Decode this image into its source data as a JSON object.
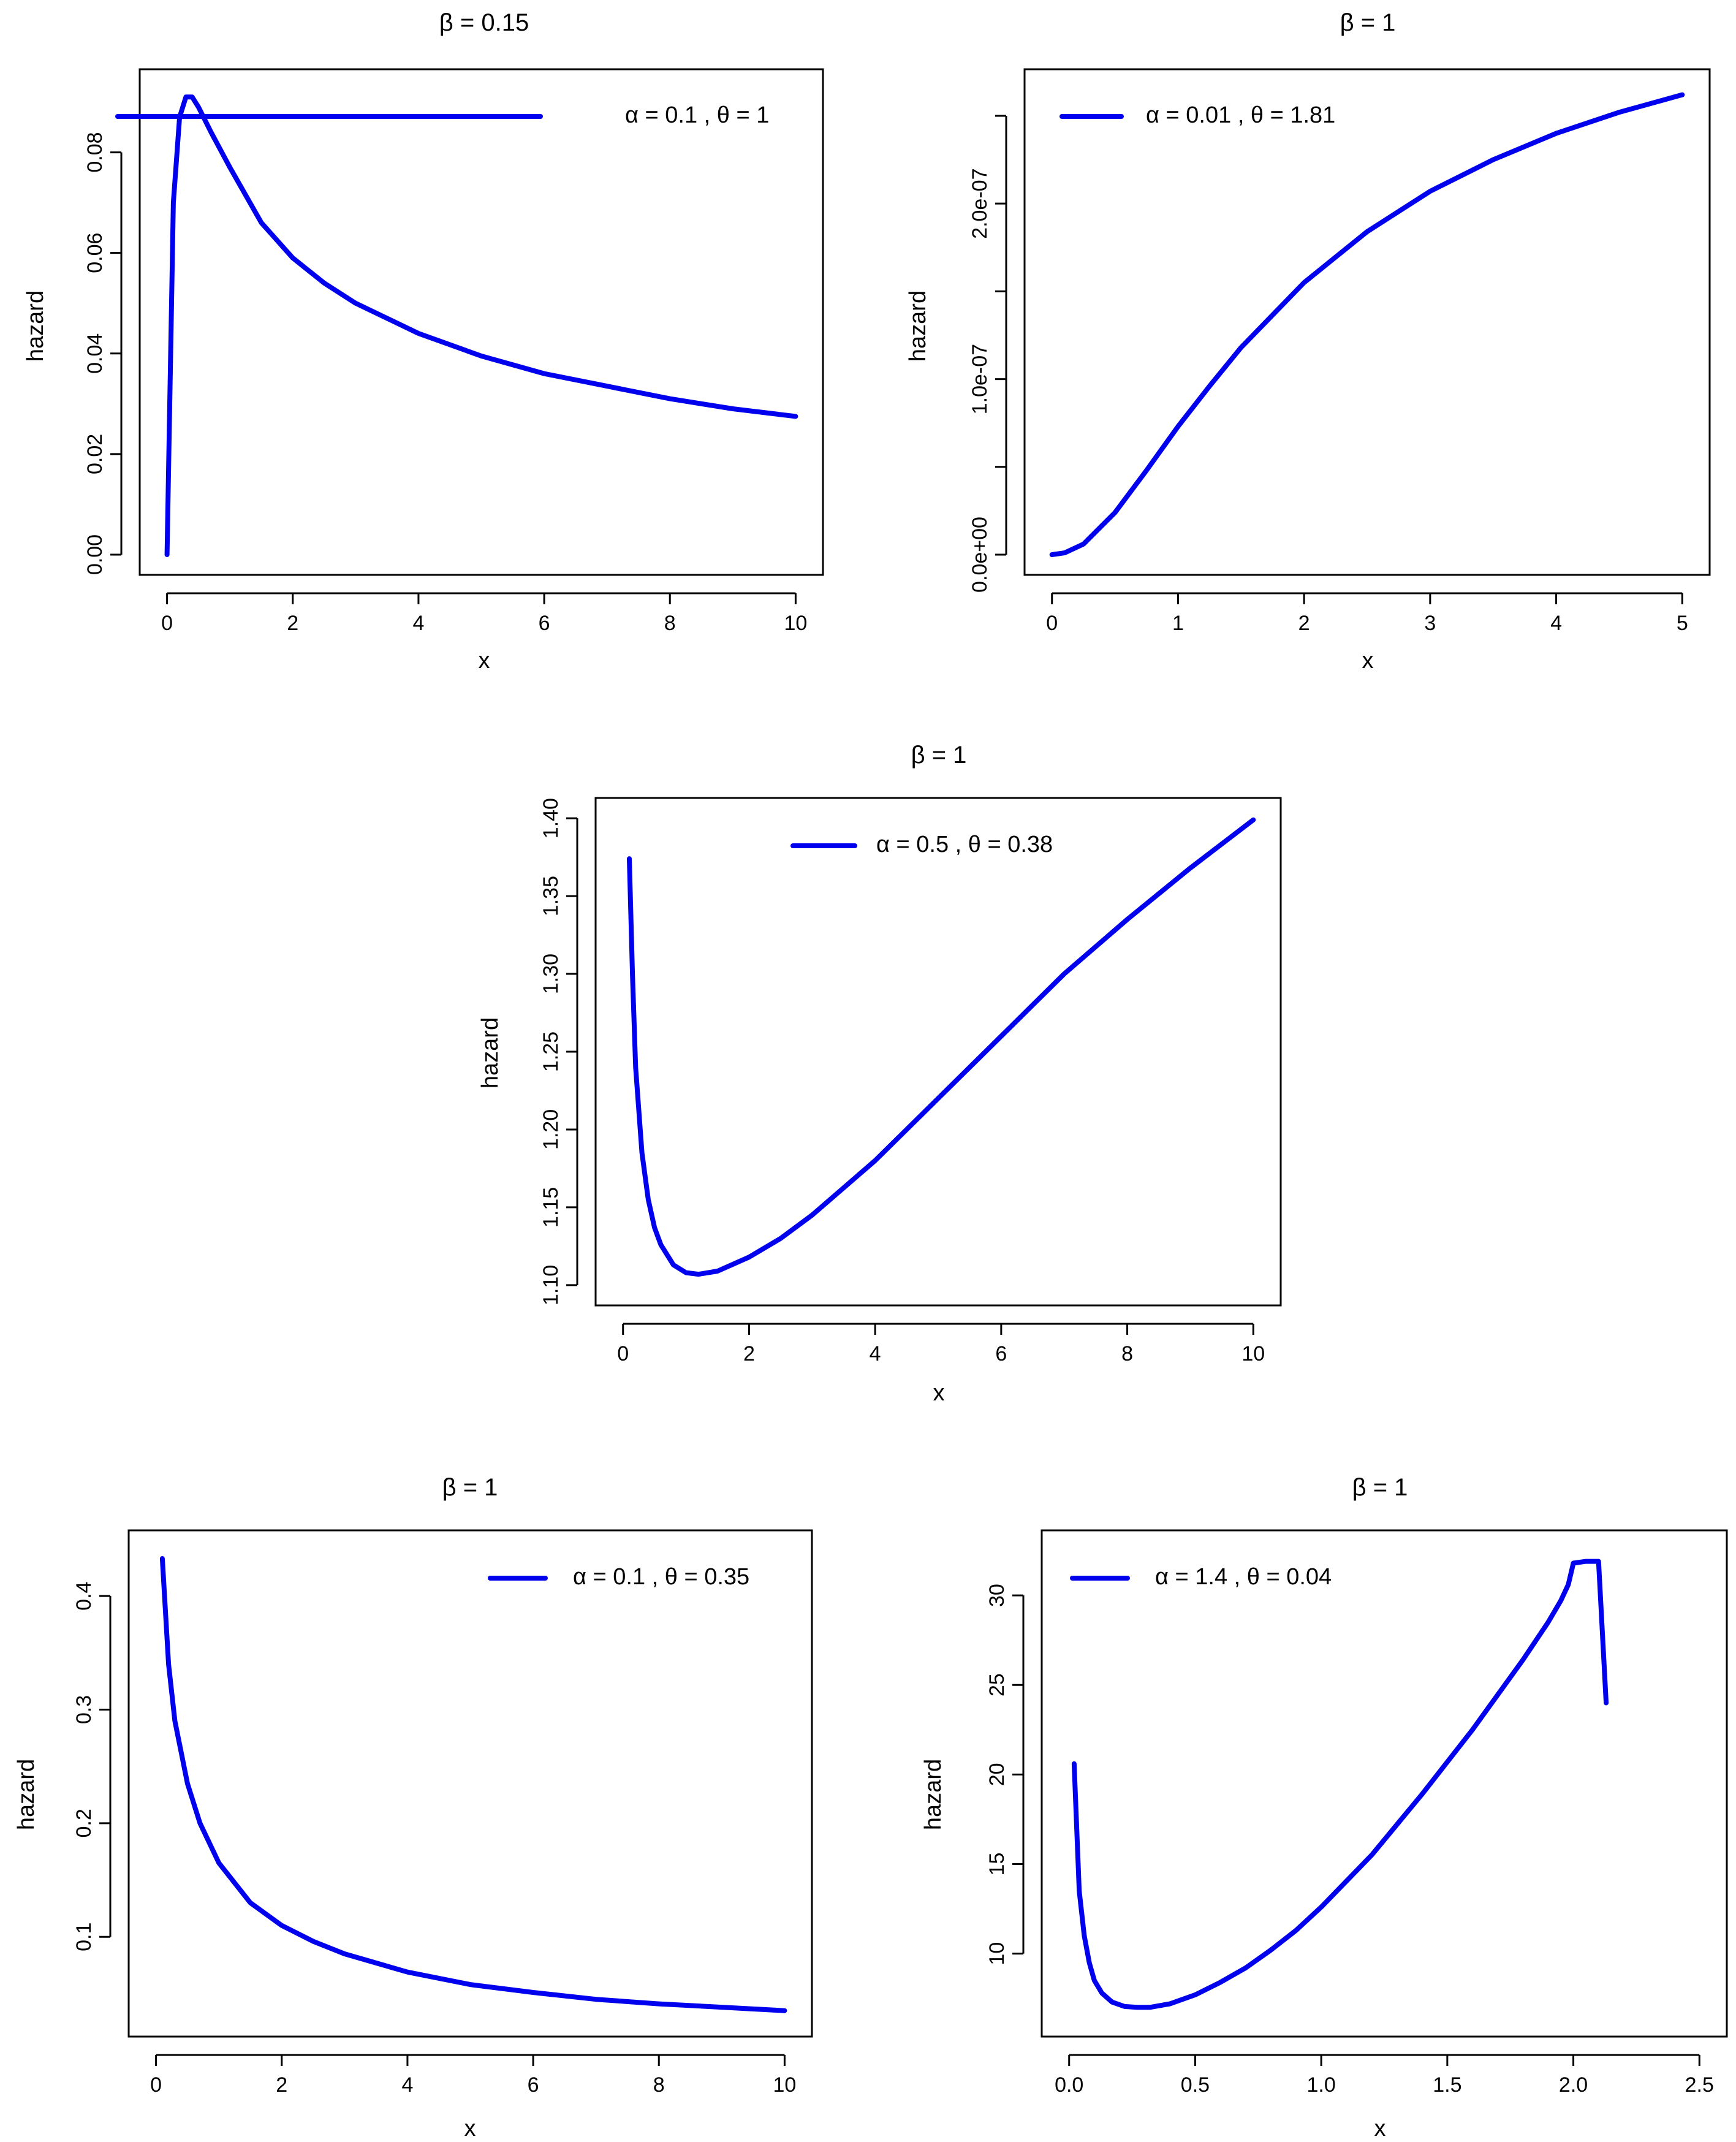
{
  "chart_data": [
    {
      "type": "line",
      "title": "β = 0.15",
      "xlabel": "x",
      "ylabel": "hazard",
      "xlim": [
        0,
        10
      ],
      "ylim": [
        0,
        0.0925
      ],
      "xticks": [
        "0",
        "2",
        "4",
        "6",
        "8",
        "10"
      ],
      "xtick_values": [
        0,
        2,
        4,
        6,
        8,
        10
      ],
      "yticks": [
        "0.00",
        "0.02",
        "0.04",
        "0.06",
        "0.08"
      ],
      "ytick_values": [
        0,
        0.02,
        0.04,
        0.06,
        0.08
      ],
      "legend": {
        "position": "top-right",
        "label": "α = 0.1 , θ = 1"
      },
      "color": "#0000ee",
      "x": [
        0,
        0.1,
        0.2,
        0.3,
        0.4,
        0.5,
        0.7,
        1,
        1.5,
        2,
        2.5,
        3,
        4,
        5,
        6,
        7,
        8,
        9,
        10
      ],
      "y": [
        0,
        0.07,
        0.087,
        0.091,
        0.091,
        0.089,
        0.084,
        0.077,
        0.066,
        0.059,
        0.054,
        0.05,
        0.044,
        0.0395,
        0.036,
        0.0335,
        0.031,
        0.029,
        0.0275
      ]
    },
    {
      "type": "line",
      "title": "β = 1",
      "xlabel": "x",
      "ylabel": "hazard",
      "xlim": [
        0,
        5
      ],
      "ylim": [
        0,
        2.65e-07
      ],
      "xticks": [
        "0",
        "1",
        "2",
        "3",
        "4",
        "5"
      ],
      "xtick_values": [
        0,
        1,
        2,
        3,
        4,
        5
      ],
      "yticks": [
        "0.0e+00",
        "",
        "1.0e-07",
        "",
        "2.0e-07",
        ""
      ],
      "ytick_values": [
        0,
        5e-08,
        1e-07,
        1.5e-07,
        2e-07,
        2.5e-07
      ],
      "legend": {
        "position": "top-left",
        "label": "α = 0.01 , θ = 1.81"
      },
      "color": "#0000ee",
      "x": [
        0,
        0.1,
        0.25,
        0.5,
        0.75,
        1,
        1.25,
        1.5,
        2,
        2.5,
        3,
        3.5,
        4,
        4.5,
        5
      ],
      "y": [
        0,
        1e-09,
        6e-09,
        2.4e-08,
        4.8e-08,
        7.3e-08,
        9.6e-08,
        1.18e-07,
        1.55e-07,
        1.84e-07,
        2.07e-07,
        2.25e-07,
        2.4e-07,
        2.52e-07,
        2.62e-07
      ]
    },
    {
      "type": "line",
      "title": "β = 1",
      "xlabel": "x",
      "ylabel": "hazard",
      "xlim": [
        0,
        10
      ],
      "ylim": [
        1.1,
        1.4
      ],
      "xticks": [
        "0",
        "2",
        "4",
        "6",
        "8",
        "10"
      ],
      "xtick_values": [
        0,
        2,
        4,
        6,
        8,
        10
      ],
      "yticks": [
        "1.10",
        "1.15",
        "1.20",
        "1.25",
        "1.30",
        "1.35",
        "1.40"
      ],
      "ytick_values": [
        1.1,
        1.15,
        1.2,
        1.25,
        1.3,
        1.35,
        1.4
      ],
      "legend": {
        "position": "top",
        "label": "α = 0.5 , θ = 0.38"
      },
      "color": "#0000ee",
      "x": [
        0.1,
        0.15,
        0.2,
        0.3,
        0.4,
        0.5,
        0.6,
        0.8,
        1,
        1.2,
        1.5,
        2,
        2.5,
        3,
        4,
        5,
        6,
        7,
        8,
        9,
        10
      ],
      "y": [
        1.374,
        1.3,
        1.24,
        1.185,
        1.155,
        1.137,
        1.126,
        1.113,
        1.108,
        1.107,
        1.109,
        1.118,
        1.13,
        1.145,
        1.18,
        1.22,
        1.26,
        1.3,
        1.335,
        1.368,
        1.399
      ]
    },
    {
      "type": "line",
      "title": "β = 1",
      "xlabel": "x",
      "ylabel": "hazard",
      "xlim": [
        0,
        10
      ],
      "ylim": [
        0.03,
        0.44
      ],
      "xticks": [
        "0",
        "2",
        "4",
        "6",
        "8",
        "10"
      ],
      "xtick_values": [
        0,
        2,
        4,
        6,
        8,
        10
      ],
      "yticks": [
        "0.1",
        "0.2",
        "0.3",
        "0.4"
      ],
      "ytick_values": [
        0.1,
        0.2,
        0.3,
        0.4
      ],
      "legend": {
        "position": "top-right",
        "label": "α = 0.1 , θ = 0.35"
      },
      "color": "#0000ee",
      "x": [
        0.1,
        0.2,
        0.3,
        0.5,
        0.7,
        1,
        1.5,
        2,
        2.5,
        3,
        4,
        5,
        6,
        7,
        8,
        9,
        10
      ],
      "y": [
        0.433,
        0.34,
        0.29,
        0.235,
        0.2,
        0.165,
        0.13,
        0.11,
        0.096,
        0.085,
        0.069,
        0.058,
        0.051,
        0.045,
        0.041,
        0.038,
        0.035
      ]
    },
    {
      "type": "line",
      "title": "β = 1",
      "xlabel": "x",
      "ylabel": "hazard",
      "xlim": [
        0,
        2.5
      ],
      "ylim": [
        6.5,
        32.5
      ],
      "xticks": [
        "0.0",
        "0.5",
        "1.0",
        "1.5",
        "2.0",
        "2.5"
      ],
      "xtick_values": [
        0,
        0.5,
        1,
        1.5,
        2,
        2.5
      ],
      "yticks": [
        "10",
        "15",
        "20",
        "25",
        "30"
      ],
      "ytick_values": [
        10,
        15,
        20,
        25,
        30
      ],
      "legend": {
        "position": "top-left",
        "label": "α = 1.4 , θ = 0.04"
      },
      "color": "#0000ee",
      "x": [
        0.02,
        0.04,
        0.06,
        0.08,
        0.1,
        0.13,
        0.17,
        0.22,
        0.27,
        0.32,
        0.4,
        0.5,
        0.6,
        0.7,
        0.8,
        0.9,
        1,
        1.2,
        1.4,
        1.6,
        1.8,
        1.9,
        1.95,
        1.98,
        2,
        2.05,
        2.1,
        2.13
      ],
      "y": [
        20.6,
        13.5,
        11,
        9.5,
        8.5,
        7.8,
        7.3,
        7.05,
        7,
        7,
        7.2,
        7.7,
        8.4,
        9.2,
        10.2,
        11.3,
        12.6,
        15.5,
        18.9,
        22.5,
        26.4,
        28.5,
        29.7,
        30.6,
        31.8,
        31.9,
        31.9,
        24
      ]
    }
  ]
}
